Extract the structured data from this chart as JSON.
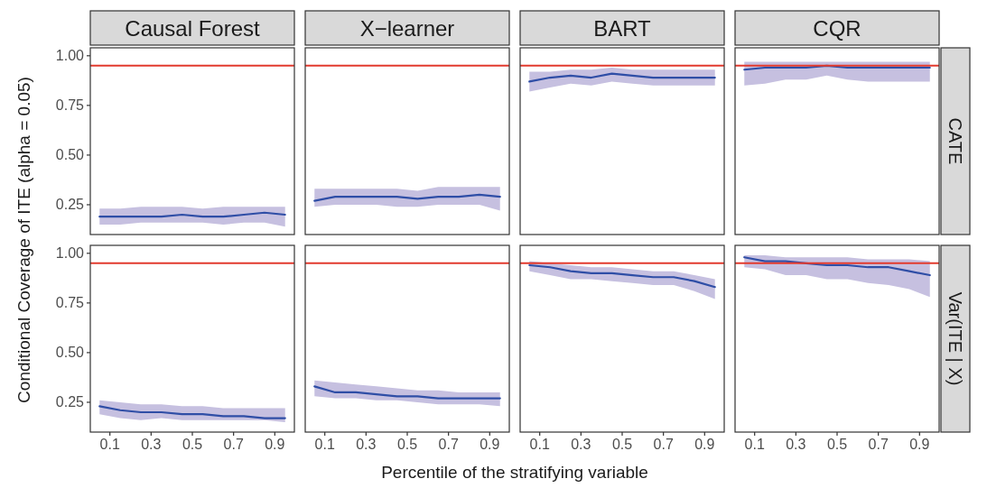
{
  "chart_data": [
    {
      "type": "line",
      "title": "Causal Forest",
      "ylabel": "Conditional Coverage of ITE (alpha = 0.05)",
      "x": [
        0.05,
        0.15,
        0.25,
        0.35,
        0.45,
        0.55,
        0.65,
        0.75,
        0.85,
        0.95
      ],
      "xlim": [
        0.005,
        0.995
      ],
      "ylim": [
        0.1,
        1.04
      ],
      "yticks": [
        {
          "value": 0.25,
          "label": "0.25"
        },
        {
          "value": 0.5,
          "label": "0.50"
        },
        {
          "value": 0.75,
          "label": "0.75"
        },
        {
          "value": 1,
          "label": "1.00"
        }
      ],
      "tick_labels": "y",
      "grid": false,
      "ref_lines": [
        {
          "axis": "y",
          "value": 0.95,
          "color": "#e23a2e"
        }
      ],
      "series": [
        {
          "color": "#2f4ea6",
          "values": [
            0.19,
            0.19,
            0.19,
            0.19,
            0.2,
            0.19,
            0.19,
            0.2,
            0.21,
            0.2
          ],
          "lower": [
            0.15,
            0.15,
            0.16,
            0.16,
            0.16,
            0.16,
            0.15,
            0.16,
            0.16,
            0.14
          ],
          "upper": [
            0.23,
            0.23,
            0.24,
            0.24,
            0.24,
            0.23,
            0.24,
            0.24,
            0.24,
            0.24
          ]
        }
      ]
    },
    {
      "type": "line",
      "title": "X−learner",
      "x": [
        0.05,
        0.15,
        0.25,
        0.35,
        0.45,
        0.55,
        0.65,
        0.75,
        0.85,
        0.95
      ],
      "xlim": [
        0.005,
        0.995
      ],
      "ylim": [
        0.1,
        1.04
      ],
      "tick_labels": false,
      "grid": false,
      "ref_lines": [
        {
          "axis": "y",
          "value": 0.95,
          "color": "#e23a2e"
        }
      ],
      "series": [
        {
          "color": "#2f4ea6",
          "values": [
            0.27,
            0.29,
            0.29,
            0.29,
            0.29,
            0.28,
            0.29,
            0.29,
            0.3,
            0.29
          ],
          "lower": [
            0.24,
            0.25,
            0.25,
            0.25,
            0.24,
            0.24,
            0.25,
            0.25,
            0.25,
            0.22
          ],
          "upper": [
            0.33,
            0.33,
            0.33,
            0.33,
            0.33,
            0.32,
            0.34,
            0.34,
            0.34,
            0.34
          ]
        }
      ]
    },
    {
      "type": "line",
      "title": "BART",
      "x": [
        0.05,
        0.15,
        0.25,
        0.35,
        0.45,
        0.55,
        0.65,
        0.75,
        0.85,
        0.95
      ],
      "xlim": [
        0.005,
        0.995
      ],
      "ylim": [
        0.1,
        1.04
      ],
      "tick_labels": false,
      "grid": false,
      "ref_lines": [
        {
          "axis": "y",
          "value": 0.95,
          "color": "#e23a2e"
        }
      ],
      "series": [
        {
          "color": "#2f4ea6",
          "values": [
            0.87,
            0.89,
            0.9,
            0.89,
            0.91,
            0.9,
            0.89,
            0.89,
            0.89,
            0.89
          ],
          "lower": [
            0.82,
            0.84,
            0.86,
            0.85,
            0.87,
            0.86,
            0.85,
            0.85,
            0.85,
            0.85
          ],
          "upper": [
            0.92,
            0.92,
            0.93,
            0.93,
            0.94,
            0.93,
            0.93,
            0.93,
            0.93,
            0.93
          ]
        }
      ]
    },
    {
      "type": "line",
      "title": "CQR",
      "annotations": [
        "CATE"
      ],
      "x": [
        0.05,
        0.15,
        0.25,
        0.35,
        0.45,
        0.55,
        0.65,
        0.75,
        0.85,
        0.95
      ],
      "xlim": [
        0.005,
        0.995
      ],
      "ylim": [
        0.1,
        1.04
      ],
      "tick_labels": false,
      "grid": false,
      "ref_lines": [
        {
          "axis": "y",
          "value": 0.95,
          "color": "#e23a2e"
        }
      ],
      "series": [
        {
          "color": "#2f4ea6",
          "values": [
            0.93,
            0.94,
            0.94,
            0.94,
            0.95,
            0.94,
            0.94,
            0.94,
            0.94,
            0.94
          ],
          "lower": [
            0.85,
            0.86,
            0.88,
            0.88,
            0.9,
            0.88,
            0.87,
            0.87,
            0.87,
            0.87
          ],
          "upper": [
            0.97,
            0.97,
            0.97,
            0.97,
            0.97,
            0.97,
            0.97,
            0.97,
            0.97,
            0.97
          ]
        }
      ]
    },
    {
      "type": "line",
      "xlabel": "Percentile of the stratifying variable",
      "x": [
        0.05,
        0.15,
        0.25,
        0.35,
        0.45,
        0.55,
        0.65,
        0.75,
        0.85,
        0.95
      ],
      "xlim": [
        0.005,
        0.995
      ],
      "ylim": [
        0.1,
        1.04
      ],
      "xticks": [
        0.1,
        0.3,
        0.5,
        0.7,
        0.9
      ],
      "yticks": [
        {
          "value": 0.25,
          "label": "0.25"
        },
        {
          "value": 0.5,
          "label": "0.50"
        },
        {
          "value": 0.75,
          "label": "0.75"
        },
        {
          "value": 1,
          "label": "1.00"
        }
      ],
      "grid": false,
      "ref_lines": [
        {
          "axis": "y",
          "value": 0.95,
          "color": "#e23a2e"
        }
      ],
      "series": [
        {
          "color": "#2f4ea6",
          "values": [
            0.23,
            0.21,
            0.2,
            0.2,
            0.19,
            0.19,
            0.18,
            0.18,
            0.17,
            0.17
          ],
          "lower": [
            0.19,
            0.17,
            0.16,
            0.17,
            0.16,
            0.16,
            0.16,
            0.16,
            0.16,
            0.15
          ],
          "upper": [
            0.26,
            0.25,
            0.24,
            0.24,
            0.23,
            0.23,
            0.22,
            0.22,
            0.22,
            0.22
          ]
        }
      ]
    },
    {
      "type": "line",
      "x": [
        0.05,
        0.15,
        0.25,
        0.35,
        0.45,
        0.55,
        0.65,
        0.75,
        0.85,
        0.95
      ],
      "xlim": [
        0.005,
        0.995
      ],
      "ylim": [
        0.1,
        1.04
      ],
      "xticks": [
        0.1,
        0.3,
        0.5,
        0.7,
        0.9
      ],
      "tick_labels": "x",
      "grid": false,
      "ref_lines": [
        {
          "axis": "y",
          "value": 0.95,
          "color": "#e23a2e"
        }
      ],
      "series": [
        {
          "color": "#2f4ea6",
          "values": [
            0.33,
            0.3,
            0.3,
            0.29,
            0.28,
            0.28,
            0.27,
            0.27,
            0.27,
            0.27
          ],
          "lower": [
            0.28,
            0.27,
            0.27,
            0.26,
            0.26,
            0.25,
            0.24,
            0.24,
            0.24,
            0.23
          ],
          "upper": [
            0.36,
            0.35,
            0.34,
            0.33,
            0.32,
            0.31,
            0.31,
            0.3,
            0.3,
            0.3
          ]
        }
      ]
    },
    {
      "type": "line",
      "x": [
        0.05,
        0.15,
        0.25,
        0.35,
        0.45,
        0.55,
        0.65,
        0.75,
        0.85,
        0.95
      ],
      "xlim": [
        0.005,
        0.995
      ],
      "ylim": [
        0.1,
        1.04
      ],
      "xticks": [
        0.1,
        0.3,
        0.5,
        0.7,
        0.9
      ],
      "tick_labels": "x",
      "grid": false,
      "ref_lines": [
        {
          "axis": "y",
          "value": 0.95,
          "color": "#e23a2e"
        }
      ],
      "series": [
        {
          "color": "#2f4ea6",
          "values": [
            0.94,
            0.93,
            0.91,
            0.9,
            0.9,
            0.89,
            0.88,
            0.88,
            0.86,
            0.83
          ],
          "lower": [
            0.91,
            0.89,
            0.87,
            0.87,
            0.86,
            0.85,
            0.84,
            0.84,
            0.81,
            0.77
          ],
          "upper": [
            0.96,
            0.95,
            0.94,
            0.93,
            0.93,
            0.92,
            0.91,
            0.91,
            0.89,
            0.87
          ]
        }
      ]
    },
    {
      "type": "line",
      "annotations": [
        "Var(ITE | X)"
      ],
      "x": [
        0.05,
        0.15,
        0.25,
        0.35,
        0.45,
        0.55,
        0.65,
        0.75,
        0.85,
        0.95
      ],
      "xlim": [
        0.005,
        0.995
      ],
      "ylim": [
        0.1,
        1.04
      ],
      "xticks": [
        0.1,
        0.3,
        0.5,
        0.7,
        0.9
      ],
      "tick_labels": "x",
      "grid": false,
      "ref_lines": [
        {
          "axis": "y",
          "value": 0.95,
          "color": "#e23a2e"
        }
      ],
      "series": [
        {
          "color": "#2f4ea6",
          "values": [
            0.98,
            0.96,
            0.96,
            0.95,
            0.94,
            0.94,
            0.93,
            0.93,
            0.91,
            0.89
          ],
          "lower": [
            0.93,
            0.92,
            0.89,
            0.89,
            0.87,
            0.87,
            0.85,
            0.84,
            0.82,
            0.78
          ],
          "upper": [
            0.99,
            0.99,
            0.98,
            0.98,
            0.98,
            0.98,
            0.97,
            0.97,
            0.97,
            0.96
          ]
        }
      ]
    }
  ]
}
